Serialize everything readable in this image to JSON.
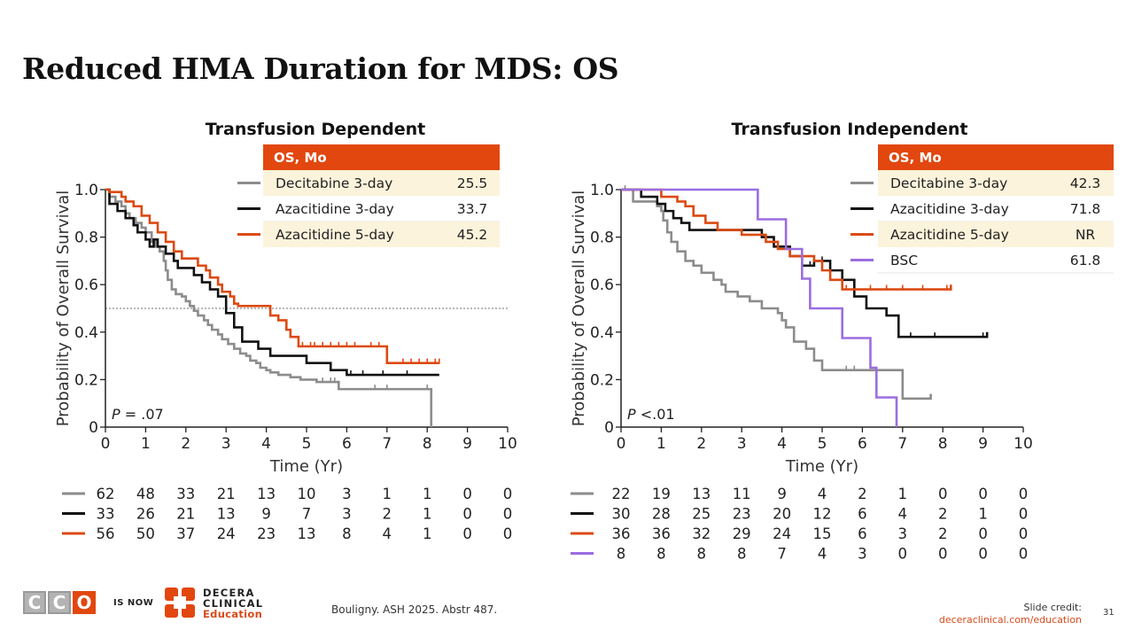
{
  "slide": {
    "title": "Reduced HMA Duration for MDS: OS",
    "source": "Bouligny. ASH 2025. Abstr 487.",
    "credit_label": "Slide credit:",
    "credit_url": "deceraclinical.com/education",
    "page_number": "31"
  },
  "branding": {
    "cco_letters": [
      "C",
      "C",
      "O"
    ],
    "is_now": "IS NOW",
    "decera_line1": "DECERA",
    "decera_line2": "CLINICAL",
    "decera_line3": "Education"
  },
  "colors": {
    "gray": "#8c8c8c",
    "black": "#111111",
    "orange": "#dc4a12",
    "purple": "#9b6de0",
    "header": "#e2470f",
    "highlight": "#fbf3db"
  },
  "chart_data": [
    {
      "type": "line",
      "title": "Transfusion Dependent",
      "xlabel": "Time (Yr)",
      "ylabel": "Probability of Overall Survival",
      "xlim": [
        0,
        10
      ],
      "ylim": [
        0,
        1.0
      ],
      "xticks": [
        "0",
        "1",
        "2",
        "3",
        "4",
        "5",
        "6",
        "7",
        "8",
        "9",
        "10"
      ],
      "yticks": [
        "0",
        "0.2",
        "0.4",
        "0.6",
        "0.8",
        "1.0"
      ],
      "reference_line": 0.5,
      "pvalue": ".07",
      "legend_header": "OS, Mo",
      "series": [
        {
          "name": "Decitabine 3-day",
          "os": "25.5",
          "color": "gray",
          "highlight": true,
          "x": [
            0,
            0.1,
            0.25,
            0.4,
            0.5,
            0.6,
            0.75,
            0.9,
            1.0,
            1.15,
            1.25,
            1.35,
            1.45,
            1.5,
            1.55,
            1.65,
            1.75,
            1.9,
            2.0,
            2.1,
            2.2,
            2.3,
            2.45,
            2.55,
            2.65,
            2.8,
            2.9,
            3.05,
            3.2,
            3.35,
            3.5,
            3.6,
            3.75,
            3.85,
            4.0,
            4.1,
            4.2,
            4.3,
            4.6,
            4.85,
            5.25,
            5.8,
            5.85,
            8.1,
            8.1
          ],
          "y": [
            1.0,
            0.97,
            0.95,
            0.93,
            0.9,
            0.88,
            0.86,
            0.84,
            0.82,
            0.78,
            0.76,
            0.74,
            0.7,
            0.66,
            0.62,
            0.58,
            0.56,
            0.55,
            0.53,
            0.51,
            0.49,
            0.47,
            0.45,
            0.43,
            0.41,
            0.39,
            0.37,
            0.35,
            0.33,
            0.31,
            0.3,
            0.28,
            0.27,
            0.25,
            0.24,
            0.23,
            0.23,
            0.22,
            0.21,
            0.2,
            0.19,
            0.16,
            0.16,
            0.16,
            0.0
          ],
          "censor_x": [
            5.4,
            5.6,
            5.7,
            6.7,
            7.0,
            8.0
          ],
          "risk": [
            "62",
            "48",
            "33",
            "21",
            "13",
            "10",
            "3",
            "1",
            "1",
            "0",
            "0"
          ]
        },
        {
          "name": "Azacitidine 3-day",
          "os": "33.7",
          "color": "black",
          "highlight": false,
          "x": [
            0,
            0.1,
            0.3,
            0.5,
            0.7,
            0.8,
            1.0,
            1.1,
            1.2,
            1.3,
            1.5,
            1.7,
            1.8,
            2.0,
            2.2,
            2.4,
            2.6,
            2.8,
            3.0,
            3.2,
            3.4,
            3.6,
            3.8,
            4.1,
            4.6,
            5.0,
            5.6,
            6.0,
            8.3
          ],
          "y": [
            1.0,
            0.94,
            0.91,
            0.88,
            0.85,
            0.82,
            0.79,
            0.76,
            0.79,
            0.76,
            0.73,
            0.7,
            0.67,
            0.67,
            0.64,
            0.61,
            0.58,
            0.55,
            0.48,
            0.42,
            0.36,
            0.36,
            0.33,
            0.3,
            0.3,
            0.27,
            0.24,
            0.22,
            0.22
          ],
          "censor_x": [
            5.6,
            6.1,
            6.4,
            6.9,
            7.5
          ],
          "risk": [
            "33",
            "26",
            "21",
            "13",
            "9",
            "7",
            "3",
            "2",
            "1",
            "0",
            "0"
          ]
        },
        {
          "name": "Azacitidine 5-day",
          "os": "45.2",
          "color": "orange",
          "highlight": true,
          "x": [
            0,
            0.1,
            0.4,
            0.5,
            0.7,
            0.9,
            1.1,
            1.3,
            1.5,
            1.7,
            1.9,
            2.1,
            2.3,
            2.5,
            2.6,
            2.8,
            2.9,
            3.1,
            3.2,
            3.3,
            3.6,
            3.8,
            4.0,
            4.1,
            4.3,
            4.5,
            4.6,
            4.8,
            5.5,
            5.9,
            6.9,
            7.0,
            8.3
          ],
          "y": [
            1.0,
            0.99,
            0.97,
            0.95,
            0.93,
            0.89,
            0.86,
            0.82,
            0.78,
            0.74,
            0.71,
            0.71,
            0.68,
            0.66,
            0.63,
            0.6,
            0.57,
            0.55,
            0.52,
            0.51,
            0.51,
            0.51,
            0.51,
            0.47,
            0.45,
            0.41,
            0.38,
            0.34,
            0.34,
            0.34,
            0.34,
            0.27,
            0.27
          ],
          "censor_x": [
            4.9,
            5.1,
            5.2,
            5.4,
            5.6,
            5.8,
            6.0,
            6.2,
            6.6,
            6.8,
            7.0,
            7.4,
            7.6,
            7.8,
            8.0,
            8.2,
            8.3
          ],
          "risk": [
            "56",
            "50",
            "37",
            "24",
            "23",
            "13",
            "8",
            "4",
            "1",
            "0",
            "0"
          ]
        }
      ]
    },
    {
      "type": "line",
      "title": "Transfusion Independent",
      "xlabel": "Time (Yr)",
      "ylabel": "Probability of Overall Survival",
      "xlim": [
        0,
        10
      ],
      "ylim": [
        0,
        1.0
      ],
      "xticks": [
        "0",
        "1",
        "2",
        "3",
        "4",
        "5",
        "6",
        "7",
        "8",
        "9",
        "10"
      ],
      "yticks": [
        "0",
        "0.2",
        "0.4",
        "0.6",
        "0.8",
        "1.0"
      ],
      "reference_line": null,
      "pvalue": "<.01",
      "legend_header": "OS, Mo",
      "series": [
        {
          "name": "Decitabine 3-day",
          "os": "42.3",
          "color": "gray",
          "highlight": true,
          "x": [
            0,
            0.3,
            0.7,
            0.9,
            1.0,
            1.05,
            1.15,
            1.25,
            1.4,
            1.6,
            1.8,
            2.0,
            2.3,
            2.5,
            2.6,
            2.9,
            3.0,
            3.2,
            3.5,
            3.7,
            3.9,
            4.0,
            4.1,
            4.3,
            4.6,
            4.8,
            5.0,
            5.4,
            5.8,
            6.3,
            6.8,
            7.0,
            7.7,
            7.7
          ],
          "y": [
            1.0,
            0.95,
            0.95,
            0.93,
            0.91,
            0.87,
            0.82,
            0.78,
            0.74,
            0.7,
            0.68,
            0.65,
            0.62,
            0.6,
            0.57,
            0.55,
            0.55,
            0.53,
            0.5,
            0.5,
            0.48,
            0.45,
            0.42,
            0.36,
            0.33,
            0.28,
            0.24,
            0.24,
            0.24,
            0.24,
            0.24,
            0.12,
            0.12,
            0.14
          ],
          "censor_x": [
            0.1,
            5.8,
            5.6
          ],
          "risk": [
            "22",
            "19",
            "13",
            "11",
            "9",
            "4",
            "2",
            "1",
            "0",
            "0",
            "0"
          ]
        },
        {
          "name": "Azacitidine 3-day",
          "os": "71.8",
          "color": "black",
          "highlight": false,
          "x": [
            0,
            0.5,
            0.9,
            1.1,
            1.3,
            1.5,
            1.7,
            2.0,
            2.4,
            2.8,
            3.2,
            3.5,
            3.8,
            4.2,
            4.5,
            4.8,
            5.2,
            5.5,
            5.8,
            6.1,
            6.6,
            6.9,
            7.5,
            8.0,
            9.1,
            9.1
          ],
          "y": [
            1.0,
            0.97,
            0.94,
            0.91,
            0.88,
            0.86,
            0.83,
            0.83,
            0.83,
            0.83,
            0.83,
            0.8,
            0.76,
            0.72,
            0.68,
            0.7,
            0.66,
            0.62,
            0.55,
            0.5,
            0.47,
            0.38,
            0.38,
            0.38,
            0.38,
            0.4
          ],
          "censor_x": [
            4.7,
            5.0,
            5.2,
            7.2,
            7.8,
            9.0
          ],
          "risk": [
            "30",
            "28",
            "25",
            "23",
            "20",
            "12",
            "6",
            "4",
            "2",
            "1",
            "0"
          ]
        },
        {
          "name": "Azacitidine 5-day",
          "os": "NR",
          "color": "orange",
          "highlight": true,
          "x": [
            0,
            0.8,
            1.0,
            1.4,
            1.6,
            1.8,
            2.1,
            2.4,
            2.8,
            3.0,
            3.3,
            3.6,
            3.9,
            4.2,
            4.5,
            4.8,
            5.0,
            5.2,
            5.5,
            5.8,
            6.4,
            8.2,
            8.2
          ],
          "y": [
            1.0,
            1.0,
            0.97,
            0.95,
            0.93,
            0.89,
            0.86,
            0.83,
            0.83,
            0.81,
            0.81,
            0.78,
            0.75,
            0.72,
            0.72,
            0.7,
            0.66,
            0.62,
            0.58,
            0.58,
            0.58,
            0.58,
            0.6
          ],
          "censor_x": [
            5.2,
            5.6,
            6.2,
            6.6,
            7.0,
            7.5,
            8.1
          ],
          "risk": [
            "36",
            "36",
            "32",
            "29",
            "24",
            "15",
            "6",
            "3",
            "2",
            "0",
            "0"
          ]
        },
        {
          "name": "BSC",
          "os": "61.8",
          "color": "purple",
          "highlight": false,
          "x": [
            0,
            3.4,
            3.4,
            4.1,
            4.1,
            4.5,
            4.5,
            4.7,
            4.7,
            5.5,
            5.5,
            6.2,
            6.2,
            6.35,
            6.35,
            6.85,
            6.85
          ],
          "y": [
            1.0,
            1.0,
            0.875,
            0.875,
            0.75,
            0.75,
            0.625,
            0.625,
            0.5,
            0.5,
            0.375,
            0.375,
            0.25,
            0.25,
            0.125,
            0.125,
            0.0
          ],
          "censor_x": [],
          "risk": [
            "8",
            "8",
            "8",
            "8",
            "7",
            "4",
            "3",
            "0",
            "0",
            "0",
            "0"
          ]
        }
      ]
    }
  ]
}
